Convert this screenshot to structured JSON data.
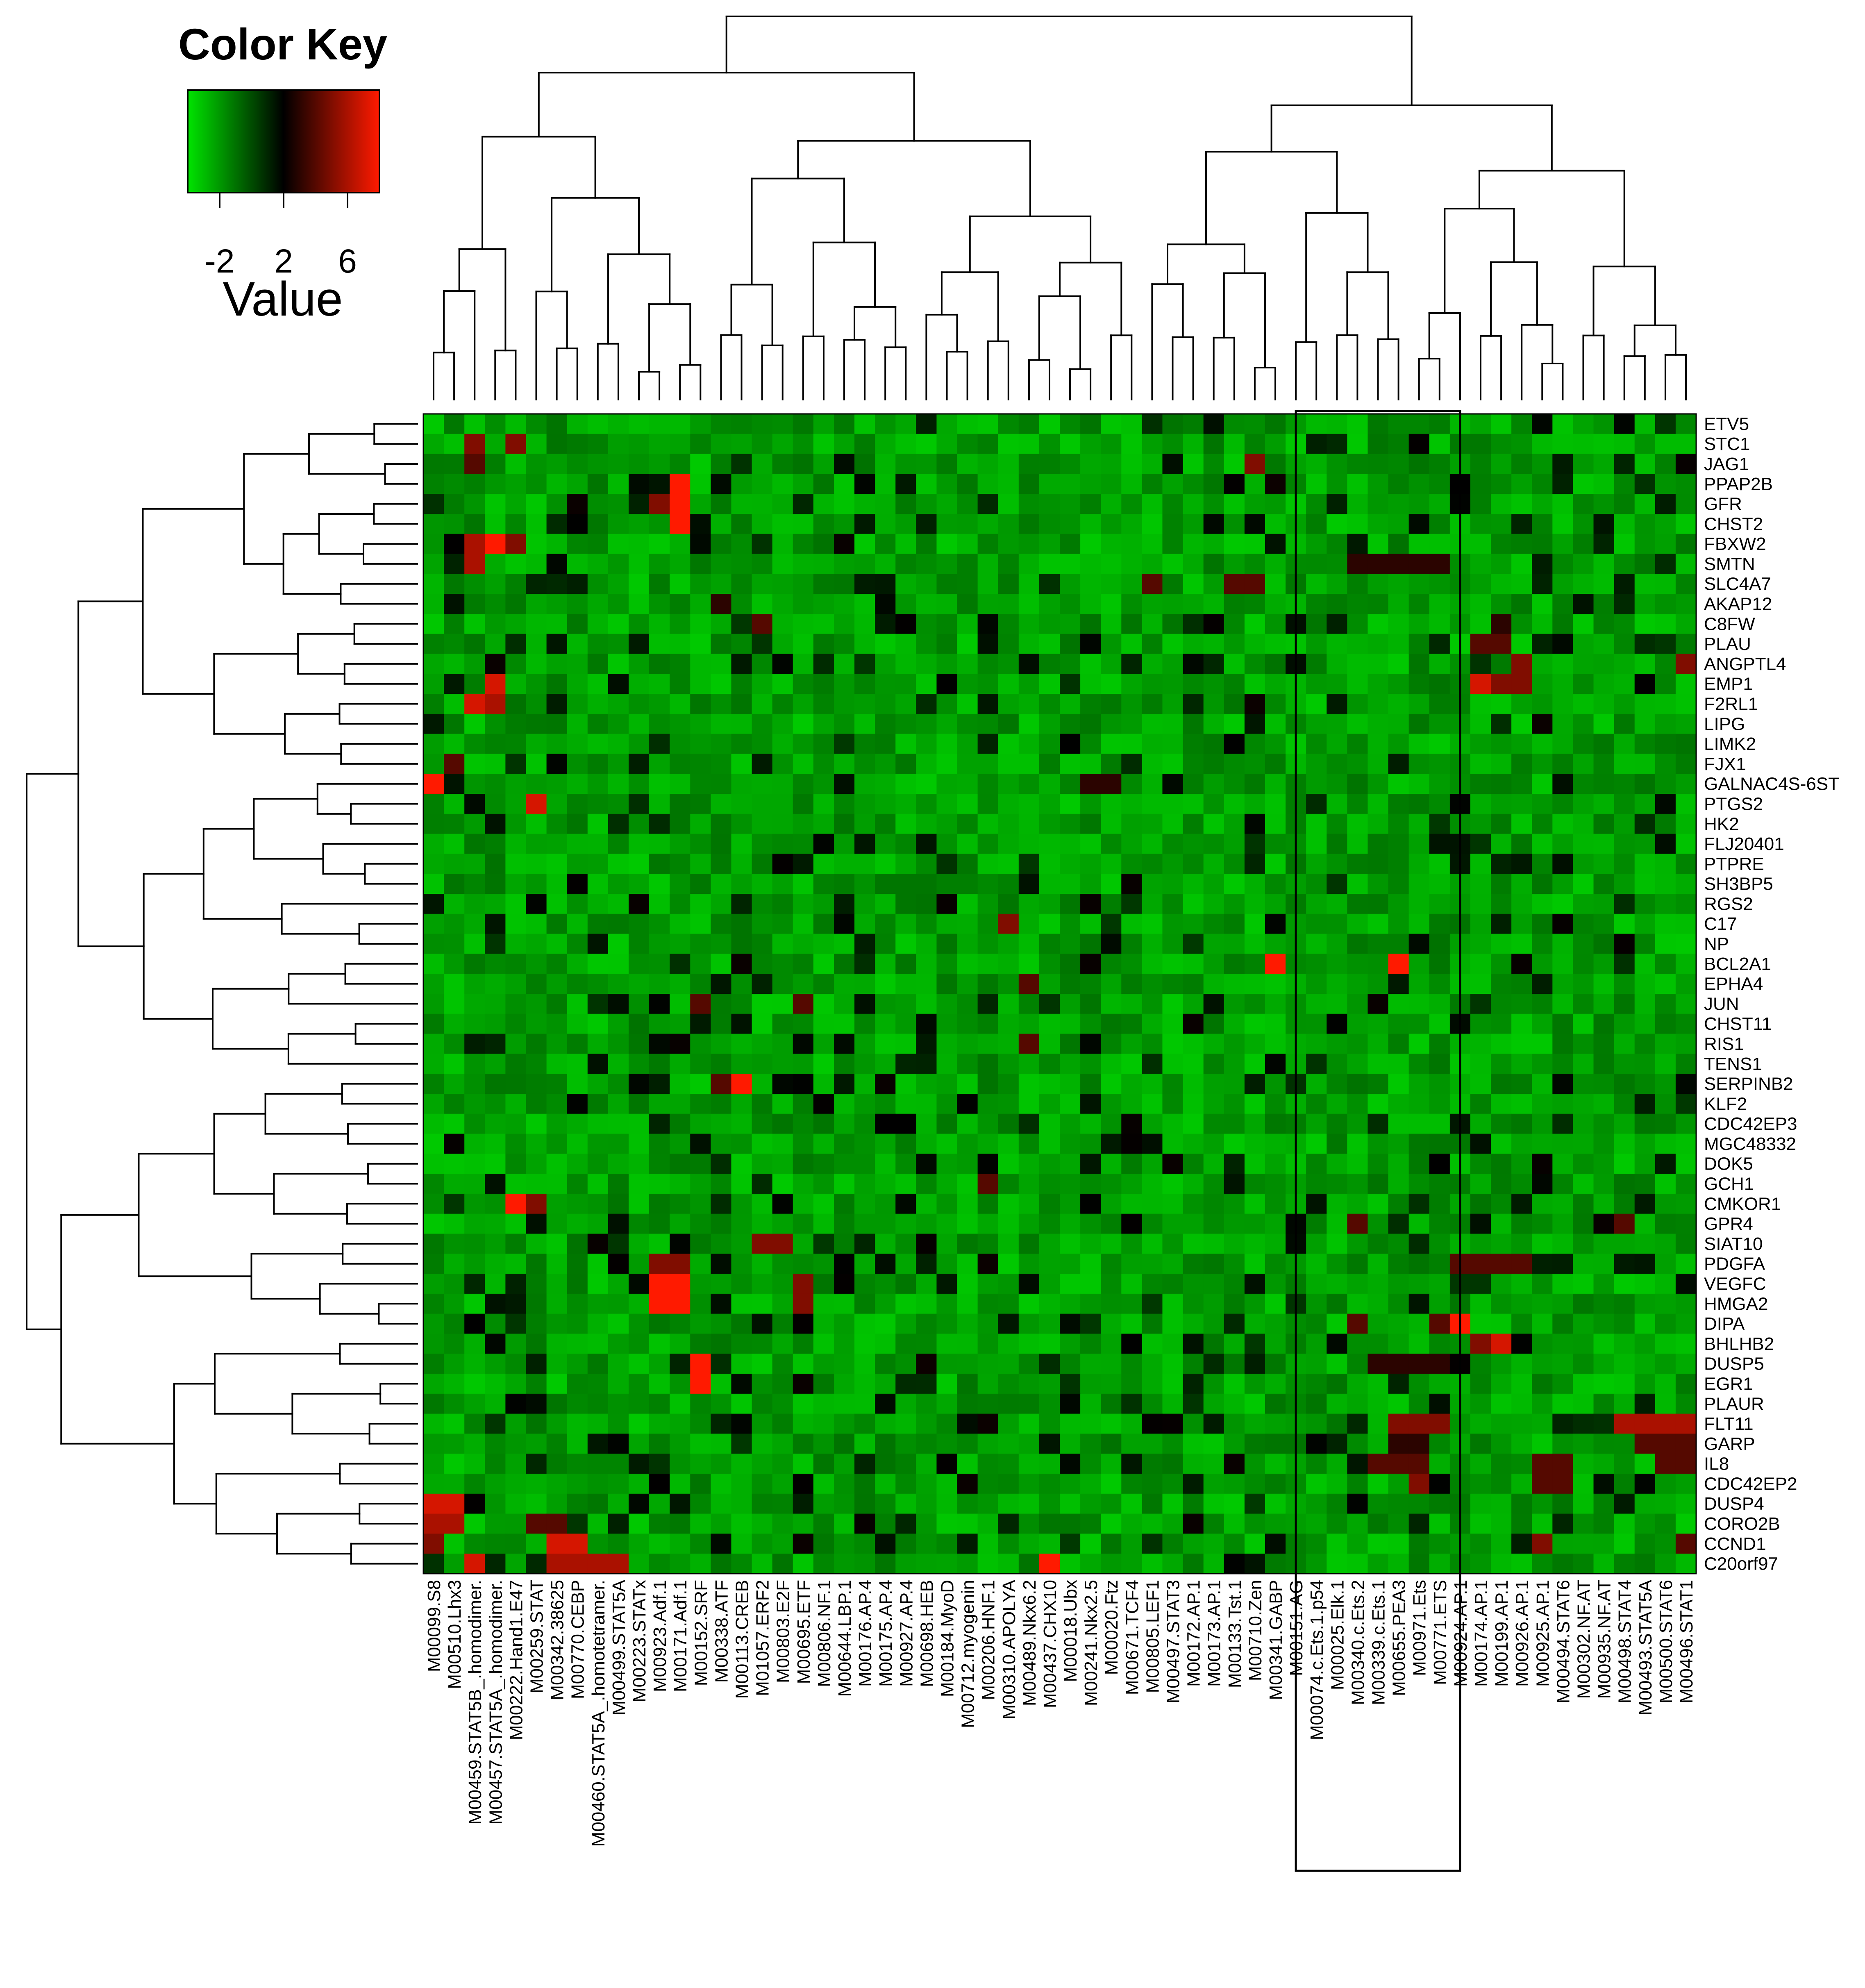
{
  "chart_data": {
    "type": "heatmap",
    "key": {
      "title": "Color Key",
      "label": "Value",
      "ticks": [
        -2,
        2,
        6
      ],
      "range": [
        -4,
        8
      ],
      "colors": [
        "#00e400",
        "#000000",
        "#ff1a00"
      ]
    },
    "rows": [
      "ETV5",
      "STC1",
      "JAG1",
      "PPAP2B",
      "GFR",
      "CHST2",
      "FBXW2",
      "SMTN",
      "SLC4A7",
      "AKAP12",
      "C8FW",
      "PLAU",
      "ANGPTL4",
      "EMP1",
      "F2RL1",
      "LIPG",
      "LIMK2",
      "FJX1",
      "GALNAC4S-6ST",
      "PTGS2",
      "HK2",
      "FLJ20401",
      "PTPRE",
      "SH3BP5",
      "RGS2",
      "C17",
      "NP",
      "BCL2A1",
      "EPHA4",
      "JUN",
      "CHST11",
      "RIS1",
      "TENS1",
      "SERPINB2",
      "KLF2",
      "CDC42EP3",
      "MGC48332",
      "DOK5",
      "GCH1",
      "CMKOR1",
      "GPR4",
      "SIAT10",
      "PDGFA",
      "VEGFC",
      "HMGA2",
      "DIPA",
      "BHLHB2",
      "DUSP5",
      "EGR1",
      "PLAUR",
      "FLT11",
      "GARP",
      "IL8",
      "CDC42EP2",
      "DUSP4",
      "CORO2B",
      "CCND1",
      "C20orf97"
    ],
    "columns": [
      "M00099.S8",
      "M00510.Lhx3",
      "M00459.STAT5B_.homodimer.",
      "M00457.STAT5A_.homodimer.",
      "M00222.Hand1.E47",
      "M00259.STAT",
      "M00342.38625",
      "M00770.CEBP",
      "M00460.STAT5A_.homotetramer.",
      "M00499.STAT5A",
      "M00223.STATx",
      "M00923.Adf.1",
      "M00171.Adf.1",
      "M00152.SRF",
      "M00338.ATF",
      "M00113.CREB",
      "M01057.ERF2",
      "M00803.E2F",
      "M00695.ETF",
      "M00806.NF.1",
      "M00644.LBP.1",
      "M00176.AP.4",
      "M00175.AP.4",
      "M00927.AP.4",
      "M00698.HEB",
      "M00184.MyoD",
      "M00712.myogenin",
      "M00206.HNF.1",
      "M00310.APOLYA",
      "M00489.Nkx6.2",
      "M00437.CHX10",
      "M00018.Ubx",
      "M00241.Nkx2.5",
      "M00020.Ftz",
      "M00671.TCF4",
      "M00805.LEF1",
      "M00497.STAT3",
      "M00172.AP.1",
      "M00173.AP.1",
      "M00133.Tst.1",
      "M00710.Zen",
      "M00341.GABP",
      "M00151.AG",
      "M00074.c.Ets.1.p54",
      "M00025.Elk.1",
      "M00340.c.Ets.2",
      "M00339.c.Ets.1",
      "M00655.PEA3",
      "M00971.Ets",
      "M00771.ETS",
      "M00924.AP.1",
      "M00174.AP.1",
      "M00199.AP.1",
      "M00926.AP.1",
      "M00925.AP.1",
      "M00494.STAT6",
      "M00302.NF.AT",
      "M00935.NF.AT",
      "M00498.STAT4",
      "M00493.STAT5A",
      "M00500.STAT6",
      "M00496.STAT1"
    ],
    "highlights": [
      {
        "row": "STC1",
        "cols": [
          "M00459.STAT5B_.homodimer."
        ],
        "value": 5
      },
      {
        "row": "STC1",
        "cols": [
          "M00222.Hand1.E47"
        ],
        "value": 5
      },
      {
        "row": "JAG1",
        "cols": [
          "M00459.STAT5B_.homodimer."
        ],
        "value": 4
      },
      {
        "row": "JAG1",
        "cols": [
          "M00710.Zen"
        ],
        "value": 5
      },
      {
        "row": "PPAP2B",
        "cols": [
          "M00171.Adf.1"
        ],
        "value": 8
      },
      {
        "row": "GFR",
        "cols": [
          "M00171.Adf.1"
        ],
        "value": 8
      },
      {
        "row": "GFR",
        "cols": [
          "M00923.Adf.1"
        ],
        "value": 5
      },
      {
        "row": "CHST2",
        "cols": [
          "M00171.Adf.1"
        ],
        "value": 8
      },
      {
        "row": "FBXW2",
        "cols": [
          "M00459.STAT5B_.homodimer."
        ],
        "value": 6
      },
      {
        "row": "FBXW2",
        "cols": [
          "M00457.STAT5A_.homodimer."
        ],
        "value": 8
      },
      {
        "row": "FBXW2",
        "cols": [
          "M00222.Hand1.E47"
        ],
        "value": 5
      },
      {
        "row": "SMTN",
        "cols": [
          "M00459.STAT5B_.homodimer."
        ],
        "value": 6
      },
      {
        "row": "SMTN",
        "cols": [
          "M00340.c.Ets.2",
          "M00339.c.Ets.1",
          "M00655.PEA3",
          "M00971.Ets",
          "M00771.ETS"
        ],
        "value": 3
      },
      {
        "row": "SLC4A7",
        "cols": [
          "M00133.Tst.1",
          "M00710.Zen"
        ],
        "value": 4
      },
      {
        "row": "SLC4A7",
        "cols": [
          "M00805.LEF1"
        ],
        "value": 4
      },
      {
        "row": "AKAP12",
        "cols": [
          "M00338.ATF"
        ],
        "value": 3
      },
      {
        "row": "C8FW",
        "cols": [
          "M01057.ERF2"
        ],
        "value": 4
      },
      {
        "row": "C8FW",
        "cols": [
          "M00199.AP.1"
        ],
        "value": 3
      },
      {
        "row": "PLAU",
        "cols": [
          "M00174.AP.1",
          "M00199.AP.1"
        ],
        "value": 4
      },
      {
        "row": "ANGPTL4",
        "cols": [
          "M00926.AP.1"
        ],
        "value": 5
      },
      {
        "row": "ANGPTL4",
        "cols": [
          "M00496.STAT1"
        ],
        "value": 5
      },
      {
        "row": "EMP1",
        "cols": [
          "M00174.AP.1"
        ],
        "value": 7
      },
      {
        "row": "EMP1",
        "cols": [
          "M00199.AP.1",
          "M00926.AP.1"
        ],
        "value": 5
      },
      {
        "row": "EMP1",
        "cols": [
          "M00457.STAT5A_.homodimer."
        ],
        "value": 7
      },
      {
        "row": "F2RL1",
        "cols": [
          "M00459.STAT5B_.homodimer."
        ],
        "value": 7
      },
      {
        "row": "F2RL1",
        "cols": [
          "M00457.STAT5A_.homodimer."
        ],
        "value": 6
      },
      {
        "row": "FJX1",
        "cols": [
          "M00510.Lhx3"
        ],
        "value": 4
      },
      {
        "row": "GALNAC4S-6ST",
        "cols": [
          "M00099.S8"
        ],
        "value": 8
      },
      {
        "row": "GALNAC4S-6ST",
        "cols": [
          "M00241.Nkx2.5",
          "M00020.Ftz"
        ],
        "value": 3
      },
      {
        "row": "PTGS2",
        "cols": [
          "M00259.STAT"
        ],
        "value": 7
      },
      {
        "row": "C17",
        "cols": [
          "M00310.APOLYA"
        ],
        "value": 5
      },
      {
        "row": "BCL2A1",
        "cols": [
          "M00341.GABP"
        ],
        "value": 8
      },
      {
        "row": "BCL2A1",
        "cols": [
          "M00655.PEA3"
        ],
        "value": 8
      },
      {
        "row": "EPHA4",
        "cols": [
          "M00489.Nkx6.2"
        ],
        "value": 4
      },
      {
        "row": "JUN",
        "cols": [
          "M00152.SRF"
        ],
        "value": 4
      },
      {
        "row": "JUN",
        "cols": [
          "M00695.ETF"
        ],
        "value": 4
      },
      {
        "row": "RIS1",
        "cols": [
          "M00489.Nkx6.2"
        ],
        "value": 4
      },
      {
        "row": "SERPINB2",
        "cols": [
          "M00338.ATF"
        ],
        "value": 4
      },
      {
        "row": "SERPINB2",
        "cols": [
          "M00113.CREB"
        ],
        "value": 8
      },
      {
        "row": "CDC42EP3",
        "cols": [
          "M00175.AP.4",
          "M00927.AP.4"
        ],
        "value": 2
      },
      {
        "row": "GCH1",
        "cols": [
          "M00206.HNF.1"
        ],
        "value": 4
      },
      {
        "row": "CMKOR1",
        "cols": [
          "M00222.Hand1.E47"
        ],
        "value": 8
      },
      {
        "row": "CMKOR1",
        "cols": [
          "M00259.STAT"
        ],
        "value": 5
      },
      {
        "row": "GPR4",
        "cols": [
          "M00340.c.Ets.2"
        ],
        "value": 4
      },
      {
        "row": "GPR4",
        "cols": [
          "M00498.STAT4"
        ],
        "value": 4
      },
      {
        "row": "SIAT10",
        "cols": [
          "M01057.ERF2",
          "M00803.E2F"
        ],
        "value": 5
      },
      {
        "row": "PDGFA",
        "cols": [
          "M00924.AP.1",
          "M00174.AP.1",
          "M00199.AP.1",
          "M00926.AP.1"
        ],
        "value": 4
      },
      {
        "row": "PDGFA",
        "cols": [
          "M00923.Adf.1",
          "M00171.Adf.1"
        ],
        "value": 5
      },
      {
        "row": "VEGFC",
        "cols": [
          "M00923.Adf.1",
          "M00171.Adf.1"
        ],
        "value": 8
      },
      {
        "row": "VEGFC",
        "cols": [
          "M00695.ETF"
        ],
        "value": 5
      },
      {
        "row": "HMGA2",
        "cols": [
          "M00923.Adf.1",
          "M00171.Adf.1"
        ],
        "value": 8
      },
      {
        "row": "HMGA2",
        "cols": [
          "M00695.ETF"
        ],
        "value": 5
      },
      {
        "row": "DIPA",
        "cols": [
          "M00924.AP.1"
        ],
        "value": 8
      },
      {
        "row": "DIPA",
        "cols": [
          "M00340.c.Ets.2"
        ],
        "value": 4
      },
      {
        "row": "DIPA",
        "cols": [
          "M00771.ETS"
        ],
        "value": 4
      },
      {
        "row": "BHLHB2",
        "cols": [
          "M00199.AP.1"
        ],
        "value": 7
      },
      {
        "row": "BHLHB2",
        "cols": [
          "M00174.AP.1"
        ],
        "value": 5
      },
      {
        "row": "DUSP5",
        "cols": [
          "M00339.c.Ets.1",
          "M00655.PEA3",
          "M00971.Ets",
          "M00771.ETS"
        ],
        "value": 3
      },
      {
        "row": "DUSP5",
        "cols": [
          "M00152.SRF"
        ],
        "value": 8
      },
      {
        "row": "EGR1",
        "cols": [
          "M00152.SRF"
        ],
        "value": 8
      },
      {
        "row": "FLT11",
        "cols": [
          "M00655.PEA3",
          "M00971.Ets",
          "M00771.ETS"
        ],
        "value": 5
      },
      {
        "row": "FLT11",
        "cols": [
          "M00498.STAT4",
          "M00493.STAT5A",
          "M00500.STAT6",
          "M00496.STAT1"
        ],
        "value": 6
      },
      {
        "row": "GARP",
        "cols": [
          "M00655.PEA3",
          "M00971.Ets"
        ],
        "value": 3
      },
      {
        "row": "GARP",
        "cols": [
          "M00493.STAT5A",
          "M00500.STAT6",
          "M00496.STAT1"
        ],
        "value": 4
      },
      {
        "row": "IL8",
        "cols": [
          "M00339.c.Ets.1",
          "M00655.PEA3",
          "M00971.Ets"
        ],
        "value": 4
      },
      {
        "row": "IL8",
        "cols": [
          "M00925.AP.1",
          "M00494.STAT6"
        ],
        "value": 4
      },
      {
        "row": "IL8",
        "cols": [
          "M00500.STAT6",
          "M00496.STAT1"
        ],
        "value": 4
      },
      {
        "row": "CDC42EP2",
        "cols": [
          "M00971.Ets"
        ],
        "value": 5
      },
      {
        "row": "CDC42EP2",
        "cols": [
          "M00925.AP.1",
          "M00494.STAT6"
        ],
        "value": 4
      },
      {
        "row": "DUSP4",
        "cols": [
          "M00099.S8",
          "M00510.Lhx3"
        ],
        "value": 7
      },
      {
        "row": "CORO2B",
        "cols": [
          "M00099.S8",
          "M00510.Lhx3"
        ],
        "value": 6
      },
      {
        "row": "CORO2B",
        "cols": [
          "M00259.STAT",
          "M00342.38625"
        ],
        "value": 4
      },
      {
        "row": "CCND1",
        "cols": [
          "M00099.S8"
        ],
        "value": 5
      },
      {
        "row": "CCND1",
        "cols": [
          "M00342.38625",
          "M00770.CEBP"
        ],
        "value": 7
      },
      {
        "row": "CCND1",
        "cols": [
          "M00925.AP.1"
        ],
        "value": 5
      },
      {
        "row": "CCND1",
        "cols": [
          "M00496.STAT1"
        ],
        "value": 4
      },
      {
        "row": "C20orf97",
        "cols": [
          "M00342.38625",
          "M00770.CEBP",
          "M00460.STAT5A_.homotetramer.",
          "M00499.STAT5A"
        ],
        "value": 6
      },
      {
        "row": "C20orf97",
        "cols": [
          "M00459.STAT5B_.homodimer."
        ],
        "value": 7
      },
      {
        "row": "C20orf97",
        "cols": [
          "M00437.CHX10"
        ],
        "value": 8
      }
    ],
    "baseline": -2,
    "selection_box": {
      "cols": [
        "M00151.AG",
        "M00771.ETS"
      ]
    }
  }
}
